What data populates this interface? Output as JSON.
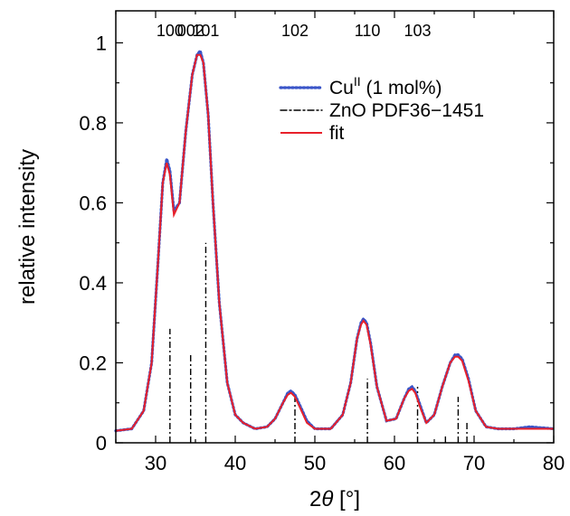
{
  "chart_data": {
    "type": "line",
    "title": "",
    "xlabel": "2θ [°]",
    "ylabel": "relative intensity",
    "xlim": [
      25,
      80
    ],
    "ylim": [
      0,
      1.08
    ],
    "xticks": [
      30,
      40,
      50,
      60,
      70,
      80
    ],
    "yticks": [
      0,
      0.2,
      0.4,
      0.6,
      0.8,
      1
    ],
    "xtick_labels": [
      "30",
      "40",
      "50",
      "60",
      "70",
      "80"
    ],
    "ytick_labels": [
      "0",
      "0.2",
      "0.4",
      "0.6",
      "0.8",
      "1"
    ],
    "grid": false,
    "legend_position": "top-right",
    "series": [
      {
        "name": "Cu",
        "name_sup": "II",
        "name_suffix": " (1 mol%)",
        "style": "dotted",
        "color": "#3a55c8",
        "x": [
          25,
          27,
          28.5,
          29.5,
          30.3,
          30.9,
          31.4,
          31.8,
          32.3,
          33.0,
          33.8,
          34.6,
          35.2,
          35.6,
          36.0,
          36.6,
          37.2,
          38.0,
          39.0,
          40.0,
          41.0,
          42.5,
          44.0,
          45.0,
          46.0,
          46.6,
          47.0,
          47.5,
          48.2,
          49.0,
          50.0,
          52.0,
          53.5,
          54.5,
          55.3,
          55.8,
          56.1,
          56.5,
          57.0,
          57.8,
          59.0,
          60.2,
          61.2,
          61.8,
          62.2,
          62.6,
          63.3,
          64.0,
          65.0,
          66.0,
          67.0,
          67.6,
          68.0,
          68.5,
          69.3,
          70.2,
          71.5,
          73.0,
          75.0,
          77.0,
          80.0
        ],
        "values": [
          0.03,
          0.035,
          0.08,
          0.2,
          0.45,
          0.65,
          0.71,
          0.68,
          0.58,
          0.6,
          0.78,
          0.92,
          0.97,
          0.98,
          0.95,
          0.82,
          0.6,
          0.35,
          0.15,
          0.07,
          0.05,
          0.035,
          0.04,
          0.06,
          0.1,
          0.125,
          0.13,
          0.12,
          0.09,
          0.055,
          0.035,
          0.035,
          0.07,
          0.15,
          0.26,
          0.3,
          0.31,
          0.3,
          0.25,
          0.14,
          0.055,
          0.06,
          0.11,
          0.135,
          0.14,
          0.13,
          0.09,
          0.05,
          0.07,
          0.14,
          0.2,
          0.22,
          0.22,
          0.21,
          0.16,
          0.08,
          0.04,
          0.035,
          0.035,
          0.04,
          0.035
        ]
      },
      {
        "name": "fit",
        "style": "solid",
        "color": "#e8202a",
        "x": [
          25,
          27,
          28.5,
          29.5,
          30.3,
          30.9,
          31.4,
          31.8,
          32.3,
          33.0,
          33.8,
          34.6,
          35.2,
          35.6,
          36.0,
          36.6,
          37.2,
          38.0,
          39.0,
          40.0,
          41.0,
          42.5,
          44.0,
          45.0,
          46.0,
          46.6,
          47.0,
          47.5,
          48.2,
          49.0,
          50.0,
          52.0,
          53.5,
          54.5,
          55.3,
          55.8,
          56.1,
          56.5,
          57.0,
          57.8,
          59.0,
          60.2,
          61.2,
          61.8,
          62.2,
          62.6,
          63.3,
          64.0,
          65.0,
          66.0,
          67.0,
          67.6,
          68.0,
          68.5,
          69.3,
          70.2,
          71.5,
          73.0,
          75.0,
          77.0,
          80.0
        ],
        "values": [
          0.03,
          0.035,
          0.08,
          0.2,
          0.45,
          0.65,
          0.7,
          0.67,
          0.57,
          0.6,
          0.78,
          0.92,
          0.97,
          0.97,
          0.95,
          0.82,
          0.6,
          0.35,
          0.15,
          0.07,
          0.05,
          0.035,
          0.04,
          0.06,
          0.1,
          0.12,
          0.125,
          0.115,
          0.085,
          0.05,
          0.035,
          0.035,
          0.07,
          0.15,
          0.26,
          0.295,
          0.305,
          0.295,
          0.245,
          0.14,
          0.055,
          0.06,
          0.11,
          0.13,
          0.135,
          0.125,
          0.085,
          0.05,
          0.07,
          0.14,
          0.2,
          0.215,
          0.215,
          0.205,
          0.155,
          0.08,
          0.04,
          0.035,
          0.035,
          0.035,
          0.035
        ]
      }
    ],
    "reference": {
      "name": "ZnO PDF36−1451",
      "style": "dash-dot",
      "color": "#000000",
      "lines": [
        {
          "x": 31.8,
          "value": 0.285
        },
        {
          "x": 34.4,
          "value": 0.22
        },
        {
          "x": 36.3,
          "value": 0.5
        },
        {
          "x": 47.5,
          "value": 0.115
        },
        {
          "x": 56.6,
          "value": 0.16
        },
        {
          "x": 62.9,
          "value": 0.14
        },
        {
          "x": 66.4,
          "value": 0.02
        },
        {
          "x": 68.0,
          "value": 0.115
        },
        {
          "x": 69.1,
          "value": 0.05
        }
      ]
    },
    "annotations": [
      {
        "text": "100",
        "x": 31.8
      },
      {
        "text": "002",
        "x": 34.4
      },
      {
        "text": "101",
        "x": 36.3
      },
      {
        "text": "102",
        "x": 47.5
      },
      {
        "text": "110",
        "x": 56.6
      },
      {
        "text": "103",
        "x": 62.9
      }
    ]
  }
}
